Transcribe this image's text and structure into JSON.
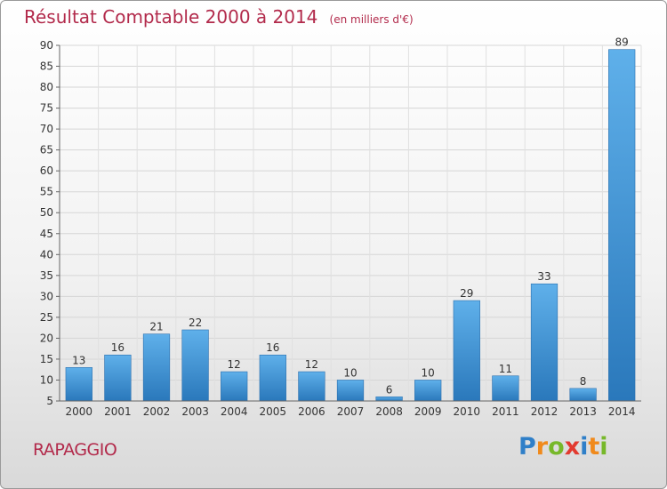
{
  "chart_data": {
    "type": "bar",
    "title": "Résultat Comptable 2000 à 2014",
    "subtitle": "(en milliers d'€)",
    "categories": [
      "2000",
      "2001",
      "2002",
      "2003",
      "2004",
      "2005",
      "2006",
      "2007",
      "2008",
      "2009",
      "2010",
      "2011",
      "2012",
      "2013",
      "2014"
    ],
    "values": [
      13,
      16,
      21,
      22,
      12,
      16,
      12,
      10,
      6,
      10,
      29,
      11,
      33,
      8,
      89
    ],
    "ylim": [
      5,
      90
    ],
    "yticks": [
      5,
      10,
      15,
      20,
      25,
      30,
      35,
      40,
      45,
      50,
      55,
      60,
      65,
      70,
      75,
      80,
      85,
      90
    ],
    "grid": true,
    "bar_color": "#3a8fd4",
    "xlabel": "",
    "ylabel": ""
  },
  "commune": "RAPAGGIO",
  "logo": {
    "text": "Proxiti",
    "letters": [
      {
        "char": "P",
        "color": "#2f7fc8"
      },
      {
        "char": "r",
        "color": "#f08a1c"
      },
      {
        "char": "o",
        "color": "#77b82a"
      },
      {
        "char": "x",
        "color": "#e23a2f"
      },
      {
        "char": "i",
        "color": "#2f7fc8"
      },
      {
        "char": "t",
        "color": "#f08a1c"
      },
      {
        "char": "i",
        "color": "#77b82a"
      }
    ]
  }
}
